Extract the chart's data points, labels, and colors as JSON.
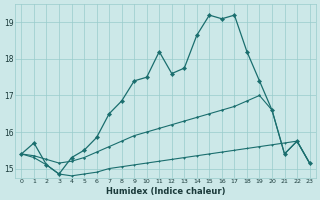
{
  "xlabel": "Humidex (Indice chaleur)",
  "background_color": "#cce8e8",
  "grid_color": "#99cccc",
  "line_color": "#1a6e6e",
  "xlim": [
    -0.5,
    23.5
  ],
  "ylim": [
    14.75,
    19.5
  ],
  "xticks": [
    0,
    1,
    2,
    3,
    4,
    5,
    6,
    7,
    8,
    9,
    10,
    11,
    12,
    13,
    14,
    15,
    16,
    17,
    18,
    19,
    20,
    21,
    22,
    23
  ],
  "yticks": [
    15,
    16,
    17,
    18,
    19
  ],
  "line1_x": [
    0,
    1,
    2,
    3,
    4,
    5,
    6,
    7,
    8,
    9,
    10,
    11,
    12,
    13,
    14,
    15,
    16,
    17,
    18,
    19,
    20,
    21,
    22,
    23
  ],
  "line1_y": [
    15.4,
    15.7,
    15.1,
    14.85,
    15.3,
    15.5,
    15.85,
    16.5,
    16.85,
    17.4,
    17.5,
    18.2,
    17.6,
    17.75,
    18.65,
    19.2,
    19.1,
    19.2,
    18.2,
    17.4,
    16.6,
    15.4,
    15.75,
    15.15
  ],
  "line2_x": [
    0,
    1,
    2,
    3,
    4,
    5,
    6,
    7,
    8,
    9,
    10,
    11,
    12,
    13,
    14,
    15,
    16,
    17,
    18,
    19,
    20,
    21,
    22,
    23
  ],
  "line2_y": [
    15.4,
    15.35,
    15.25,
    15.15,
    15.2,
    15.3,
    15.45,
    15.6,
    15.75,
    15.9,
    16.0,
    16.1,
    16.2,
    16.3,
    16.4,
    16.5,
    16.6,
    16.7,
    16.85,
    17.0,
    16.6,
    15.4,
    15.75,
    15.15
  ],
  "line3_x": [
    0,
    1,
    2,
    3,
    4,
    5,
    6,
    7,
    8,
    9,
    10,
    11,
    12,
    13,
    14,
    15,
    16,
    17,
    18,
    19,
    20,
    21,
    22,
    23
  ],
  "line3_y": [
    15.4,
    15.3,
    15.1,
    14.85,
    14.8,
    14.85,
    14.9,
    15.0,
    15.05,
    15.1,
    15.15,
    15.2,
    15.25,
    15.3,
    15.35,
    15.4,
    15.45,
    15.5,
    15.55,
    15.6,
    15.65,
    15.7,
    15.75,
    15.15
  ]
}
